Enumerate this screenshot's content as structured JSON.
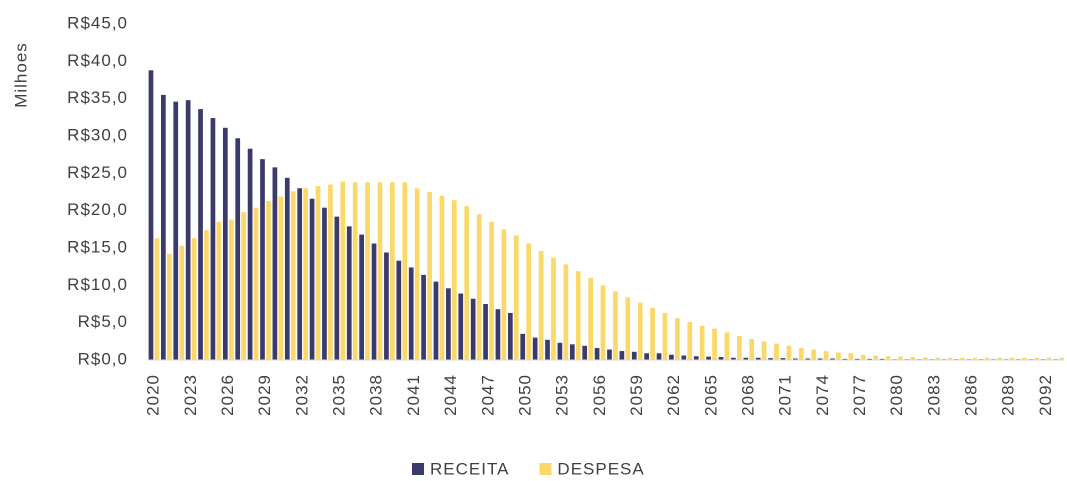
{
  "chart_data": {
    "type": "bar",
    "y_axis_label": "Milhoes",
    "categories": [
      "2020",
      null,
      null,
      "2023",
      null,
      null,
      "2026",
      null,
      null,
      "2029",
      null,
      null,
      "2032",
      null,
      null,
      "2035",
      null,
      null,
      "2038",
      null,
      null,
      "2041",
      null,
      null,
      "2044",
      null,
      null,
      "2047",
      null,
      null,
      "2050",
      null,
      null,
      "2053",
      null,
      null,
      "2056",
      null,
      null,
      "2059",
      null,
      null,
      "2062",
      null,
      null,
      "2065",
      null,
      null,
      "2068",
      null,
      null,
      "2071",
      null,
      null,
      "2074",
      null,
      null,
      "2077",
      null,
      null,
      "2080",
      null,
      null,
      "2083",
      null,
      null,
      "2086",
      null,
      null,
      "2089",
      null,
      null,
      "2092",
      null
    ],
    "series": [
      {
        "name": "RECEITA",
        "color": "#3b3a6b",
        "values": [
          38.8,
          35.5,
          34.6,
          34.8,
          33.6,
          32.4,
          31.1,
          29.7,
          28.3,
          26.9,
          25.8,
          24.4,
          23.0,
          21.6,
          20.4,
          19.2,
          17.9,
          16.8,
          15.6,
          14.4,
          13.3,
          12.4,
          11.4,
          10.5,
          9.6,
          8.9,
          8.2,
          7.5,
          6.8,
          6.3,
          3.5,
          3.0,
          2.7,
          2.3,
          2.1,
          1.9,
          1.6,
          1.4,
          1.2,
          1.1,
          0.9,
          0.9,
          0.7,
          0.6,
          0.5,
          0.45,
          0.4,
          0.3,
          0.3,
          0.3,
          0.25,
          0.25,
          0.2,
          0.2,
          0.2,
          0.2,
          0.15,
          0.15,
          0.15,
          0.15,
          0.1,
          0.1,
          0.1,
          0.1,
          0.1,
          0.1,
          0.1,
          0.1,
          0.1,
          0.1,
          0.1,
          0.1,
          0.1,
          0.1
        ]
      },
      {
        "name": "DESPESA",
        "color": "#fbd86a",
        "values": [
          16.3,
          14.2,
          15.3,
          16.3,
          17.4,
          18.5,
          18.8,
          19.8,
          20.4,
          21.3,
          21.9,
          22.6,
          23.0,
          23.3,
          23.5,
          23.9,
          23.8,
          23.8,
          23.8,
          23.8,
          23.8,
          23.0,
          22.5,
          22.0,
          21.4,
          20.6,
          19.5,
          18.5,
          17.5,
          16.7,
          15.6,
          14.6,
          13.7,
          12.8,
          11.9,
          11.0,
          10.0,
          9.2,
          8.4,
          7.7,
          7.0,
          6.3,
          5.6,
          5.1,
          4.6,
          4.2,
          3.7,
          3.2,
          2.8,
          2.5,
          2.2,
          1.9,
          1.6,
          1.4,
          1.2,
          1.0,
          0.9,
          0.7,
          0.6,
          0.5,
          0.45,
          0.4,
          0.35,
          0.3,
          0.3,
          0.3,
          0.3,
          0.3,
          0.3,
          0.3,
          0.3,
          0.3,
          0.3,
          0.3
        ]
      }
    ],
    "ylim": [
      0,
      45
    ],
    "yticks": [
      {
        "value": 0,
        "label": "R$0,0"
      },
      {
        "value": 5,
        "label": "R$5,0"
      },
      {
        "value": 10,
        "label": "R$10,0"
      },
      {
        "value": 15,
        "label": "R$15,0"
      },
      {
        "value": 20,
        "label": "R$20,0"
      },
      {
        "value": 25,
        "label": "R$25,0"
      },
      {
        "value": 30,
        "label": "R$30,0"
      },
      {
        "value": 35,
        "label": "R$35,0"
      },
      {
        "value": 40,
        "label": "R$40,0"
      },
      {
        "value": 45,
        "label": "R$45,0"
      }
    ],
    "grid": false,
    "legend": "bottom"
  }
}
